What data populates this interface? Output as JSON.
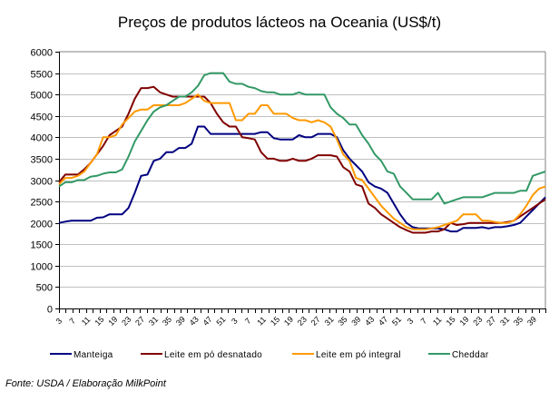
{
  "chart_data": {
    "type": "line",
    "title": "Preços de produtos lácteos na Oceania (US$/t)",
    "xlabel": "",
    "ylabel": "",
    "ylim": [
      0,
      6000
    ],
    "yticks": [
      0,
      500,
      1000,
      1500,
      2000,
      2500,
      3000,
      3500,
      4000,
      4500,
      5000,
      5500,
      6000
    ],
    "grid": true,
    "legend": "bottom",
    "xtick_labels": [
      "3",
      "7",
      "11",
      "15",
      "19",
      "23",
      "27",
      "31",
      "35",
      "39",
      "43",
      "47",
      "51",
      "3",
      "7",
      "11",
      "15",
      "19",
      "23",
      "27",
      "31",
      "35",
      "39",
      "43",
      "47",
      "51",
      "3",
      "7",
      "11",
      "15",
      "19",
      "23",
      "27",
      "31",
      "35",
      "39"
    ],
    "series": [
      {
        "name": "Manteiga",
        "color": "#000080",
        "values": [
          2000,
          2030,
          2050,
          2050,
          2050,
          2050,
          2120,
          2130,
          2200,
          2200,
          2200,
          2350,
          2700,
          3100,
          3130,
          3450,
          3500,
          3650,
          3650,
          3750,
          3750,
          3850,
          4250,
          4250,
          4080,
          4080,
          4080,
          4080,
          4080,
          4080,
          4080,
          4080,
          4120,
          4120,
          3980,
          3950,
          3950,
          3950,
          4050,
          4000,
          4000,
          4080,
          4080,
          4080,
          4000,
          3700,
          3500,
          3350,
          3200,
          2950,
          2850,
          2800,
          2700,
          2450,
          2200,
          2000,
          1900,
          1870,
          1870,
          1870,
          1870,
          1850,
          1800,
          1800,
          1880,
          1880,
          1880,
          1900,
          1870,
          1900,
          1900,
          1920,
          1950,
          2000,
          2150,
          2300,
          2450,
          2600
        ]
      },
      {
        "name": "Leite em pó desnatado",
        "color": "#800000",
        "values": [
          2950,
          3130,
          3130,
          3130,
          3250,
          3400,
          3600,
          3800,
          4050,
          4150,
          4250,
          4550,
          4900,
          5150,
          5150,
          5180,
          5050,
          5000,
          4950,
          4950,
          4950,
          4950,
          4950,
          4950,
          4800,
          4550,
          4350,
          4250,
          4250,
          4000,
          3980,
          3950,
          3650,
          3500,
          3500,
          3450,
          3450,
          3500,
          3450,
          3450,
          3500,
          3580,
          3580,
          3580,
          3550,
          3300,
          3200,
          2900,
          2850,
          2450,
          2350,
          2200,
          2100,
          2000,
          1900,
          1830,
          1770,
          1770,
          1770,
          1800,
          1800,
          1850,
          2000,
          1950,
          1970,
          2000,
          2000,
          2000,
          2000,
          2000,
          2000,
          2020,
          2050,
          2150,
          2250,
          2350,
          2450,
          2550
        ]
      },
      {
        "name": "Leite em pó integral",
        "color": "#FF9900",
        "values": [
          2900,
          3050,
          3050,
          3100,
          3200,
          3400,
          3600,
          4000,
          4000,
          4050,
          4300,
          4450,
          4600,
          4650,
          4650,
          4750,
          4750,
          4750,
          4750,
          4750,
          4800,
          4900,
          5000,
          4850,
          4800,
          4800,
          4800,
          4800,
          4400,
          4400,
          4550,
          4550,
          4750,
          4750,
          4550,
          4550,
          4550,
          4450,
          4400,
          4400,
          4350,
          4400,
          4350,
          4250,
          3950,
          3600,
          3450,
          3050,
          3000,
          2800,
          2600,
          2400,
          2250,
          2100,
          2000,
          1900,
          1850,
          1850,
          1850,
          1870,
          1900,
          1950,
          2000,
          2050,
          2200,
          2200,
          2200,
          2050,
          2050,
          2020,
          2000,
          2000,
          2050,
          2200,
          2400,
          2650,
          2800,
          2850
        ]
      },
      {
        "name": "Cheddar",
        "color": "#339966",
        "values": [
          2850,
          2950,
          2950,
          3000,
          3000,
          3080,
          3100,
          3150,
          3180,
          3180,
          3250,
          3550,
          3900,
          4150,
          4400,
          4600,
          4700,
          4750,
          4850,
          4950,
          4950,
          5050,
          5200,
          5450,
          5500,
          5500,
          5500,
          5300,
          5250,
          5250,
          5180,
          5150,
          5080,
          5050,
          5050,
          5000,
          5000,
          5000,
          5050,
          5000,
          5000,
          5000,
          5000,
          4700,
          4550,
          4450,
          4300,
          4300,
          4050,
          3850,
          3600,
          3450,
          3200,
          3150,
          2850,
          2700,
          2550,
          2550,
          2550,
          2550,
          2700,
          2450,
          2500,
          2550,
          2600,
          2600,
          2600,
          2600,
          2650,
          2700,
          2700,
          2700,
          2700,
          2750,
          2750,
          3100,
          3150,
          3200
        ]
      }
    ]
  },
  "source": "Fonte: USDA / Elaboração MilkPoint"
}
